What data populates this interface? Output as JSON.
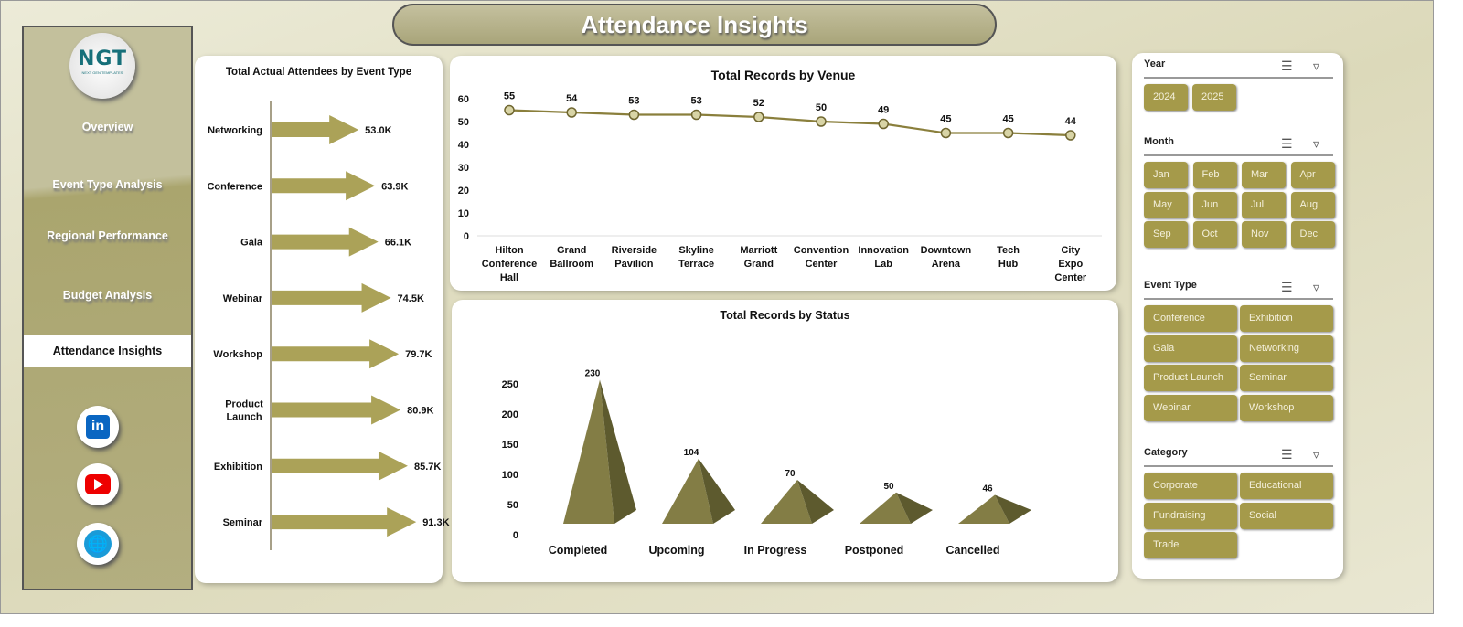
{
  "header": {
    "title": "Attendance Insights"
  },
  "logo": {
    "text": "NGT",
    "subtitle": "NEXT GEN TEMPLATES"
  },
  "nav": [
    "Overview",
    "Event Type Analysis",
    "Regional Performance",
    "Budget Analysis",
    "Attendance Insights"
  ],
  "nav_active": "Attendance Insights",
  "social": [
    "linkedin-icon",
    "youtube-icon",
    "globe-icon"
  ],
  "colors": {
    "accent": "#a59a4a",
    "arrow": "#aba258",
    "line": "#8a7f3c",
    "pyramid": "#7d7640"
  },
  "chart_data": [
    {
      "type": "bar",
      "title": "Total Actual Attendees  by Event Type",
      "orientation": "horizontal",
      "categories": [
        "Networking",
        "Conference",
        "Gala",
        "Webinar",
        "Workshop",
        "Product Launch",
        "Exhibition",
        "Seminar"
      ],
      "values": [
        53.0,
        63.9,
        66.1,
        74.5,
        79.7,
        80.9,
        85.7,
        91.3
      ],
      "labels": [
        "53.0K",
        "63.9K",
        "66.1K",
        "74.5K",
        "79.7K",
        "80.9K",
        "85.7K",
        "91.3K"
      ],
      "unit": "K"
    },
    {
      "type": "line",
      "title": "Total Records by Venue",
      "categories": [
        "Hilton Conference Hall",
        "Grand Ballroom",
        "Riverside Pavilion",
        "Skyline Terrace",
        "Marriott Grand",
        "Convention Center",
        "Innovation Lab",
        "Downtown Arena",
        "Tech Hub",
        "City Expo Center"
      ],
      "values": [
        55,
        54,
        53,
        53,
        52,
        50,
        49,
        45,
        45,
        44
      ],
      "ylim": [
        0,
        60
      ],
      "yticks": [
        0,
        10,
        20,
        30,
        40,
        50,
        60
      ]
    },
    {
      "type": "bar",
      "title": "Total Records by Status",
      "style": "3d-pyramid",
      "categories": [
        "Completed",
        "Upcoming",
        "In Progress",
        "Postponed",
        "Cancelled"
      ],
      "values": [
        230,
        104,
        70,
        50,
        46
      ],
      "ylim": [
        0,
        250
      ],
      "yticks": [
        0,
        50,
        100,
        150,
        200,
        250
      ]
    }
  ],
  "slicers": [
    {
      "title": "Year",
      "items": [
        "2024",
        "2025"
      ]
    },
    {
      "title": "Month",
      "items": [
        "Jan",
        "Feb",
        "Mar",
        "Apr",
        "May",
        "Jun",
        "Jul",
        "Aug",
        "Sep",
        "Oct",
        "Nov",
        "Dec"
      ]
    },
    {
      "title": "Event Type",
      "items": [
        "Conference",
        "Exhibition",
        "Gala",
        "Networking",
        "Product Launch",
        "Seminar",
        "Webinar",
        "Workshop"
      ]
    },
    {
      "title": "Category",
      "items": [
        "Corporate",
        "Educational",
        "Fundraising",
        "Social",
        "Trade"
      ]
    }
  ]
}
